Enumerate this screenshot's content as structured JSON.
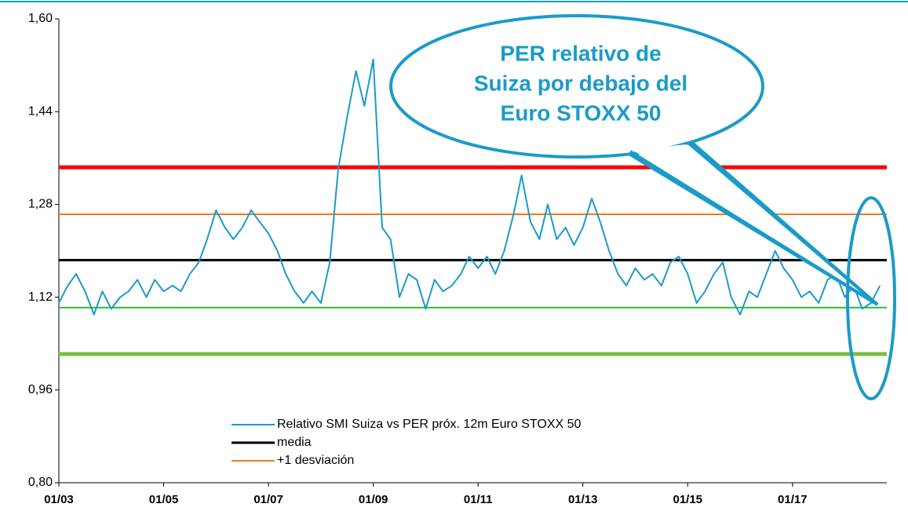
{
  "chart_data": {
    "type": "line",
    "callout": [
      "PER relativo de",
      "Suiza por debajo del",
      "Euro STOXX 50"
    ],
    "x": [
      2003.0,
      2003.17,
      2003.33,
      2003.5,
      2003.67,
      2003.83,
      2004.0,
      2004.17,
      2004.33,
      2004.5,
      2004.67,
      2004.83,
      2005.0,
      2005.17,
      2005.33,
      2005.5,
      2005.67,
      2005.83,
      2006.0,
      2006.17,
      2006.33,
      2006.5,
      2006.67,
      2006.83,
      2007.0,
      2007.17,
      2007.33,
      2007.5,
      2007.67,
      2007.83,
      2008.0,
      2008.17,
      2008.33,
      2008.5,
      2008.67,
      2008.83,
      2009.0,
      2009.17,
      2009.33,
      2009.5,
      2009.67,
      2009.83,
      2010.0,
      2010.17,
      2010.33,
      2010.5,
      2010.67,
      2010.83,
      2011.0,
      2011.17,
      2011.33,
      2011.5,
      2011.67,
      2011.83,
      2012.0,
      2012.17,
      2012.33,
      2012.5,
      2012.67,
      2012.83,
      2013.0,
      2013.17,
      2013.33,
      2013.5,
      2013.67,
      2013.83,
      2014.0,
      2014.17,
      2014.33,
      2014.5,
      2014.67,
      2014.83,
      2015.0,
      2015.17,
      2015.33,
      2015.5,
      2015.67,
      2015.83,
      2016.0,
      2016.17,
      2016.33,
      2016.5,
      2016.67,
      2016.83,
      2017.0,
      2017.17,
      2017.33,
      2017.5,
      2017.67,
      2017.83,
      2018.0,
      2018.17,
      2018.33,
      2018.5,
      2018.67
    ],
    "series": [
      {
        "name": "Relativo SMI Suiza vs PER próx. 12m Euro STOXX 50",
        "color": "#1a9bc9",
        "values": [
          1.11,
          1.14,
          1.16,
          1.13,
          1.09,
          1.13,
          1.1,
          1.12,
          1.13,
          1.15,
          1.12,
          1.15,
          1.13,
          1.14,
          1.13,
          1.16,
          1.18,
          1.22,
          1.27,
          1.24,
          1.22,
          1.24,
          1.27,
          1.25,
          1.23,
          1.2,
          1.16,
          1.13,
          1.11,
          1.13,
          1.11,
          1.18,
          1.34,
          1.43,
          1.51,
          1.45,
          1.53,
          1.24,
          1.22,
          1.12,
          1.16,
          1.15,
          1.1,
          1.15,
          1.13,
          1.14,
          1.16,
          1.19,
          1.17,
          1.19,
          1.16,
          1.2,
          1.26,
          1.33,
          1.25,
          1.22,
          1.28,
          1.22,
          1.24,
          1.21,
          1.24,
          1.29,
          1.25,
          1.2,
          1.16,
          1.14,
          1.17,
          1.15,
          1.16,
          1.14,
          1.18,
          1.19,
          1.16,
          1.11,
          1.13,
          1.16,
          1.18,
          1.12,
          1.09,
          1.13,
          1.12,
          1.16,
          1.2,
          1.17,
          1.15,
          1.12,
          1.13,
          1.11,
          1.15,
          1.16,
          1.12,
          1.14,
          1.1,
          1.11,
          1.14
        ]
      }
    ],
    "hlines": [
      {
        "color": "#ff0000",
        "value": 1.344
      },
      {
        "name": "+1 desviación",
        "color": "#f07820",
        "value": 1.263
      },
      {
        "name": "media",
        "color": "#000000",
        "value": 1.184
      },
      {
        "color": "#33bb33",
        "value": 1.102
      },
      {
        "color": "#77c043",
        "value": 1.022
      }
    ],
    "legend_order": [
      "series.0",
      "hlines.2",
      "hlines.1"
    ],
    "xlim": [
      2003.0,
      2018.8
    ],
    "xticks": [
      {
        "value": 2003,
        "label": "01/03"
      },
      {
        "value": 2005,
        "label": "01/05"
      },
      {
        "value": 2007,
        "label": "01/07"
      },
      {
        "value": 2009,
        "label": "01/09"
      },
      {
        "value": 2011,
        "label": "01/11"
      },
      {
        "value": 2013,
        "label": "01/13"
      },
      {
        "value": 2015,
        "label": "01/15"
      },
      {
        "value": 2017,
        "label": "01/17"
      }
    ],
    "ylim": [
      0.8,
      1.6
    ],
    "yticks": [
      {
        "value": 0.8,
        "label": "0,80"
      },
      {
        "value": 0.96,
        "label": "0,96"
      },
      {
        "value": 1.12,
        "label": "1,12"
      },
      {
        "value": 1.28,
        "label": "1,28"
      },
      {
        "value": 1.44,
        "label": "1,44"
      },
      {
        "value": 1.6,
        "label": "1,60"
      }
    ],
    "grid": false
  }
}
